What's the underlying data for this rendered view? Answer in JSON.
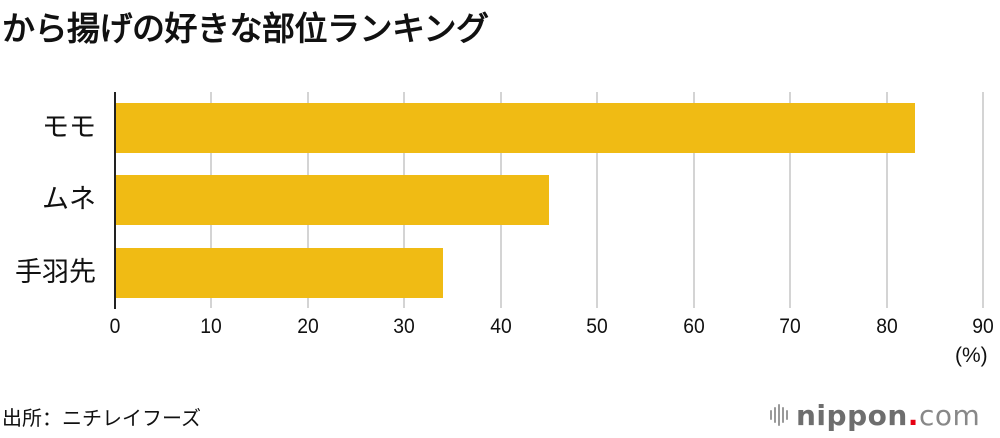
{
  "title": "から揚げの好きな部位ランキング",
  "source": "出所：ニチレイフーズ",
  "logo": {
    "name": "nippon",
    "dot": ".",
    "suffix": "com",
    "icon": "sound-wave-icon"
  },
  "colors": {
    "bar": "#f0bb14",
    "grid": "#d4d4d4",
    "axis": "#222222",
    "logo_dot": "#e60012"
  },
  "chart_data": {
    "type": "bar",
    "orientation": "horizontal",
    "title": "から揚げの好きな部位ランキング",
    "categories": [
      "モモ",
      "ムネ",
      "手羽先"
    ],
    "values": [
      83,
      45,
      34
    ],
    "xlabel": "(%)",
    "ylabel": "",
    "xlim": [
      0,
      90
    ],
    "xticks": [
      "0",
      "10",
      "20",
      "30",
      "40",
      "50",
      "60",
      "70",
      "80",
      "90"
    ],
    "grid": true,
    "legend": null,
    "source": "出所：ニチレイフーズ"
  }
}
